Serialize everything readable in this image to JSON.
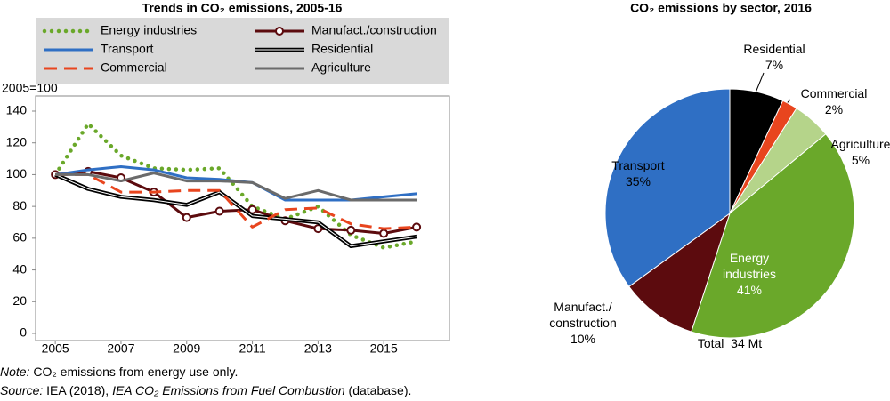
{
  "chart_data": [
    {
      "type": "line",
      "title": "Trends in CO₂ emissions, 2005-16",
      "y_label": "2005=100",
      "x": [
        2005,
        2006,
        2007,
        2008,
        2009,
        2010,
        2011,
        2012,
        2013,
        2014,
        2015,
        2016
      ],
      "xlim": [
        2004.4,
        2017
      ],
      "xticks": [
        2005,
        2007,
        2009,
        2011,
        2013,
        2015
      ],
      "ylim": [
        0,
        140
      ],
      "yticks": [
        0,
        20,
        40,
        60,
        80,
        100,
        120,
        140
      ],
      "legend": "top",
      "legend_background": "#d9d9d9",
      "series": [
        {
          "name": "Energy industries",
          "color": "#6aa82a",
          "style": "dotted",
          "values": [
            100,
            132,
            112,
            104,
            103,
            104,
            80,
            72,
            80,
            62,
            54,
            58
          ]
        },
        {
          "name": "Manufact./construction",
          "color": "#5c0b0e",
          "style": "marker",
          "values": [
            100,
            102,
            98,
            89,
            73,
            77,
            78,
            71,
            66,
            65,
            63,
            67
          ]
        },
        {
          "name": "Transport",
          "color": "#2f6fc4",
          "style": "solid",
          "values": [
            100,
            103,
            105,
            103,
            98,
            97,
            95,
            84,
            84,
            84,
            86,
            88
          ]
        },
        {
          "name": "Residential",
          "color": "#000000",
          "style": "double",
          "values": [
            100,
            91,
            86,
            84,
            81,
            89,
            74,
            72,
            70,
            55,
            58,
            61
          ]
        },
        {
          "name": "Commercial",
          "color": "#e8451e",
          "style": "dashed",
          "values": [
            100,
            100,
            89,
            89,
            90,
            90,
            67,
            78,
            79,
            69,
            66,
            67
          ]
        },
        {
          "name": "Agriculture",
          "color": "#6b6b6b",
          "style": "solid",
          "values": [
            100,
            100,
            96,
            101,
            96,
            96,
            95,
            85,
            90,
            84,
            84,
            84
          ]
        }
      ]
    },
    {
      "type": "pie",
      "title": "CO₂ emissions by sector, 2016",
      "categories": [
        "Residential",
        "Commercial",
        "Agriculture",
        "Energy\nindustries",
        "Manufact./\nconstruction",
        "Transport"
      ],
      "values": [
        7,
        2,
        5,
        41,
        10,
        35
      ],
      "value_labels": [
        "7%",
        "2%",
        "5%",
        "41%",
        "10%",
        "35%"
      ],
      "colors": [
        "#000000",
        "#e8451e",
        "#b5d48a",
        "#6aa82a",
        "#5c0b0e",
        "#2f6fc4"
      ],
      "annotation": "Total  34 Mt"
    }
  ],
  "notes": {
    "note_label": "Note:",
    "note_text": " CO₂ emissions from energy use only.",
    "source_label": "Source:",
    "source_text": " IEA (2018), ",
    "source_title": "IEA CO₂ Emissions from Fuel Combustion",
    "source_end": " (database)."
  }
}
